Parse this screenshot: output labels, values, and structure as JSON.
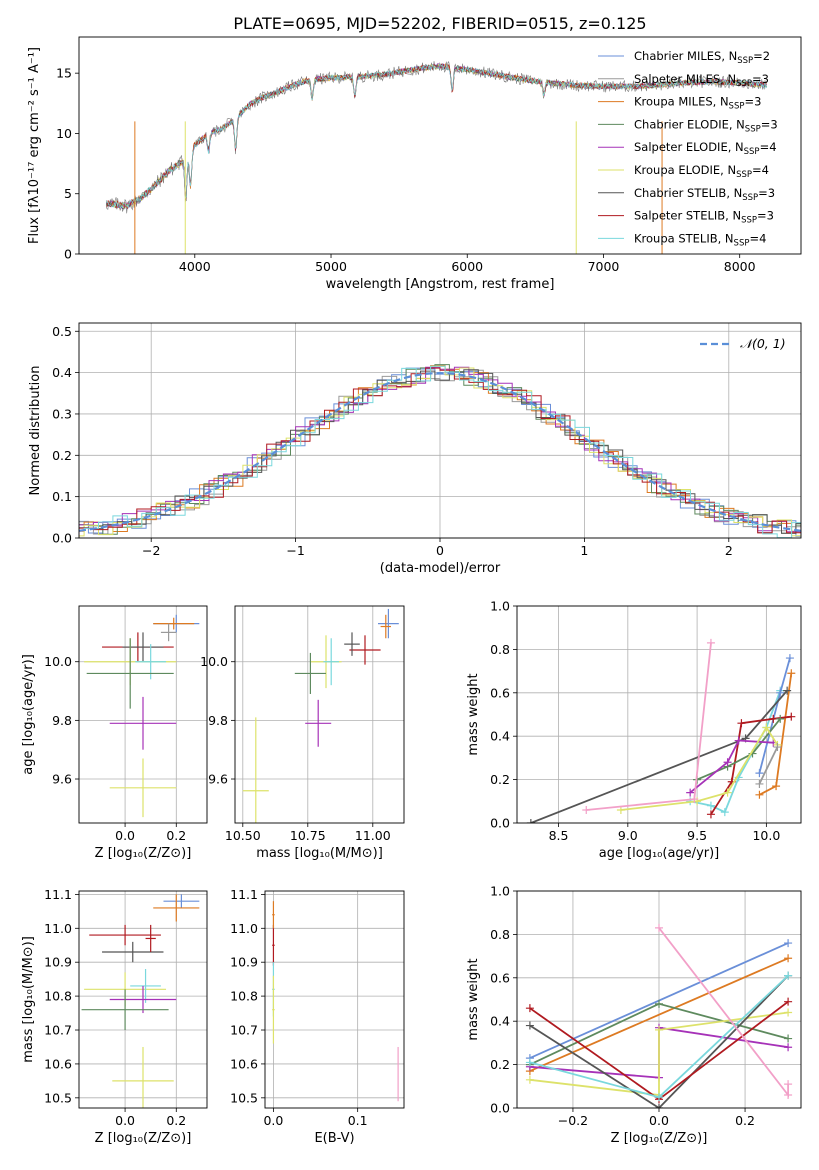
{
  "figure": {
    "title": "PLATE=0695, MJD=52202, FIBERID=0515, z=0.125"
  },
  "colors": {
    "Chabrier MILES": "#6a8fd8",
    "Salpeter MILES": "#9a9a9a",
    "Kroupa MILES": "#dd7a22",
    "Chabrier ELODIE": "#5e8a5e",
    "Salpeter ELODIE": "#a632b8",
    "Kroupa ELODIE": "#dde26a",
    "Chabrier STELIB": "#555555",
    "Salpeter STELIB": "#b01a20",
    "Kroupa STELIB": "#7ad8dd",
    "Normal": "#5a8fd8",
    "Spectrum": "#7a7a7a",
    "Vline": "#f2a0c8"
  },
  "chart_data": [
    {
      "id": "spectrum",
      "type": "line",
      "title": "PLATE=0695, MJD=52202, FIBERID=0515, z=0.125",
      "xlabel": "wavelength [Angstrom, rest frame]",
      "ylabel": "Flux [fλ10⁻¹⁷ erg cm⁻² s⁻¹ A⁻¹]",
      "xlim": [
        3150,
        8450
      ],
      "ylim": [
        0,
        18
      ],
      "xticks": [
        "4000",
        "5000",
        "6000",
        "7000",
        "8000"
      ],
      "yticks": [
        "0",
        "5",
        "10",
        "15"
      ],
      "legend": "top-right",
      "grid": false,
      "envelope_x": [
        3350,
        3500,
        3600,
        3700,
        3800,
        3900,
        4000,
        4100,
        4200,
        4300,
        4400,
        4500,
        4600,
        4700,
        4800,
        4900,
        5000,
        5200,
        5400,
        5600,
        5800,
        6000,
        6200,
        6400,
        6600,
        6800,
        7000,
        7200,
        7400,
        7600,
        7800,
        8000,
        8200
      ],
      "envelope_y": [
        4.2,
        4.0,
        4.6,
        5.6,
        6.8,
        7.6,
        9.0,
        10.0,
        10.4,
        11.2,
        12.4,
        13.0,
        13.4,
        13.9,
        14.3,
        14.5,
        14.6,
        14.7,
        14.9,
        15.3,
        15.6,
        15.3,
        14.9,
        14.5,
        14.2,
        14.0,
        13.9,
        13.9,
        14.0,
        14.2,
        14.3,
        14.2,
        14.0
      ],
      "series": [
        {
          "name": "Chabrier MILES, N_SSP=2",
          "label_main": "Chabrier MILES, N",
          "label_sub": "SSP",
          "label_tail": "=2"
        },
        {
          "name": "Salpeter MILES, N_SSP=3",
          "label_main": "Salpeter MILES, N",
          "label_sub": "SSP",
          "label_tail": "=3"
        },
        {
          "name": "Kroupa MILES, N_SSP=3",
          "label_main": "Kroupa MILES, N",
          "label_sub": "SSP",
          "label_tail": "=3"
        },
        {
          "name": "Chabrier ELODIE, N_SSP=3",
          "label_main": "Chabrier ELODIE, N",
          "label_sub": "SSP",
          "label_tail": "=3"
        },
        {
          "name": "Salpeter ELODIE, N_SSP=4",
          "label_main": "Salpeter ELODIE, N",
          "label_sub": "SSP",
          "label_tail": "=4"
        },
        {
          "name": "Kroupa ELODIE, N_SSP=4",
          "label_main": "Kroupa ELODIE, N",
          "label_sub": "SSP",
          "label_tail": "=4"
        },
        {
          "name": "Chabrier STELIB, N_SSP=3",
          "label_main": "Chabrier STELIB, N",
          "label_sub": "SSP",
          "label_tail": "=3"
        },
        {
          "name": "Salpeter STELIB, N_SSP=3",
          "label_main": "Salpeter STELIB, N",
          "label_sub": "SSP",
          "label_tail": "=3"
        },
        {
          "name": "Kroupa STELIB, N_SSP=4",
          "label_main": "Kroupa STELIB, N",
          "label_sub": "SSP",
          "label_tail": "=4"
        }
      ]
    },
    {
      "id": "residuals",
      "type": "line",
      "xlabel": "(data-model)/error",
      "ylabel": "Normed distribution",
      "xlim": [
        -2.5,
        2.5
      ],
      "ylim": [
        0,
        0.52
      ],
      "xticks": [
        "−2",
        "−1",
        "0",
        "1",
        "2"
      ],
      "yticks": [
        "0.0",
        "0.1",
        "0.2",
        "0.3",
        "0.4",
        "0.5"
      ],
      "legend_label": "𝒩(0, 1)",
      "legend": "top-right",
      "grid": true
    },
    {
      "id": "z_age",
      "type": "scatter",
      "xlabel": "Z [log₁₀(Z/Z⊙)]",
      "ylabel": "age  [log₁₀(age/yr)]",
      "xlim": [
        -0.18,
        0.32
      ],
      "ylim": [
        9.45,
        10.19
      ],
      "xticks": [
        "0.0",
        "0.2"
      ],
      "yticks": [
        "9.6",
        "9.8",
        "10.0"
      ],
      "grid": true,
      "points": [
        {
          "model": "Chabrier MILES",
          "x": 0.2,
          "y": 10.13,
          "xerr": 0.09,
          "yerr": 0.03
        },
        {
          "model": "Kroupa MILES",
          "x": 0.19,
          "y": 10.13,
          "xerr": 0.08,
          "yerr": 0.02
        },
        {
          "model": "Salpeter MILES",
          "x": 0.17,
          "y": 10.1,
          "xerr": 0.03,
          "yerr": 0.03
        },
        {
          "model": "Salpeter STELIB",
          "x": 0.05,
          "y": 10.05,
          "xerr": 0.14,
          "yerr": 0.05
        },
        {
          "model": "Chabrier STELIB",
          "x": 0.07,
          "y": 10.05,
          "xerr": 0.08,
          "yerr": 0.05
        },
        {
          "model": "Kroupa ELODIE",
          "x": 0.02,
          "y": 10.0,
          "xerr": 0.18,
          "yerr": 0.08
        },
        {
          "model": "Kroupa STELIB",
          "x": 0.1,
          "y": 10.0,
          "xerr": 0.06,
          "yerr": 0.06
        },
        {
          "model": "Chabrier ELODIE",
          "x": 0.02,
          "y": 9.96,
          "xerr": 0.17,
          "yerr": 0.12
        },
        {
          "model": "Salpeter ELODIE",
          "x": 0.07,
          "y": 9.79,
          "xerr": 0.13,
          "yerr": 0.09
        },
        {
          "model": "Kroupa ELODIE",
          "x": 0.07,
          "y": 9.57,
          "xerr": 0.13,
          "yerr": 0.1
        }
      ]
    },
    {
      "id": "mass_age",
      "type": "scatter",
      "xlabel": "mass [log₁₀(M/M⊙)]",
      "ylabel": "",
      "xlim": [
        10.47,
        11.12
      ],
      "ylim": [
        9.45,
        10.19
      ],
      "xticks": [
        "10.50",
        "10.75",
        "11.00"
      ],
      "yticks": [
        "9.6",
        "9.8",
        "10.0"
      ],
      "grid": true,
      "points": [
        {
          "model": "Chabrier MILES",
          "x": 11.06,
          "y": 10.13,
          "xerr": 0.04,
          "yerr": 0.05
        },
        {
          "model": "Kroupa MILES",
          "x": 11.05,
          "y": 10.12,
          "xerr": 0.02,
          "yerr": 0.04
        },
        {
          "model": "Salpeter STELIB",
          "x": 10.97,
          "y": 10.04,
          "xerr": 0.06,
          "yerr": 0.05
        },
        {
          "model": "Chabrier STELIB",
          "x": 10.92,
          "y": 10.06,
          "xerr": 0.03,
          "yerr": 0.04
        },
        {
          "model": "Kroupa ELODIE",
          "x": 10.82,
          "y": 10.0,
          "xerr": 0.06,
          "yerr": 0.09
        },
        {
          "model": "Kroupa STELIB",
          "x": 10.84,
          "y": 10.0,
          "xerr": 0.03,
          "yerr": 0.08
        },
        {
          "model": "Chabrier ELODIE",
          "x": 10.76,
          "y": 9.96,
          "xerr": 0.06,
          "yerr": 0.07
        },
        {
          "model": "Salpeter ELODIE",
          "x": 10.79,
          "y": 9.79,
          "xerr": 0.05,
          "yerr": 0.08
        },
        {
          "model": "Kroupa ELODIE",
          "x": 10.55,
          "y": 9.56,
          "xerr": 0.05,
          "yerr": 0.25
        }
      ]
    },
    {
      "id": "age_weight",
      "type": "line",
      "xlabel": "age  [log₁₀(age/yr)]",
      "ylabel": "mass weight",
      "xlim": [
        8.2,
        10.25
      ],
      "ylim": [
        0,
        1.0
      ],
      "xticks": [
        "8.5",
        "9.0",
        "9.5",
        "10.0"
      ],
      "yticks": [
        "0.0",
        "0.2",
        "0.4",
        "0.6",
        "0.8",
        "1.0"
      ],
      "grid": true,
      "series": [
        {
          "model": "Kroupa STELIB",
          "x": [
            9.45,
            9.6,
            9.7,
            9.8,
            10.0,
            10.1
          ],
          "y": [
            0.1,
            0.08,
            0.05,
            0.21,
            0.44,
            0.61
          ]
        },
        {
          "model": "Chabrier MILES",
          "x": [
            9.95,
            10.1,
            10.17
          ],
          "y": [
            0.23,
            0.6,
            0.76
          ]
        },
        {
          "model": "Kroupa MILES",
          "x": [
            9.95,
            10.07,
            10.18
          ],
          "y": [
            0.13,
            0.17,
            0.69
          ]
        },
        {
          "model": "Chabrier STELIB",
          "x": [
            8.3,
            9.85,
            10.15
          ],
          "y": [
            0.0,
            0.39,
            0.61
          ]
        },
        {
          "model": "Salpeter STELIB",
          "x": [
            9.6,
            9.75,
            9.82,
            10.05,
            10.18
          ],
          "y": [
            0.04,
            0.19,
            0.46,
            0.48,
            0.49
          ]
        },
        {
          "model": "Chabrier ELODIE",
          "x": [
            9.5,
            9.72,
            9.9,
            10.1
          ],
          "y": [
            0.2,
            0.26,
            0.32,
            0.48
          ]
        },
        {
          "model": "Salpeter ELODIE",
          "x": [
            9.45,
            9.72,
            9.8,
            10.05
          ],
          "y": [
            0.14,
            0.28,
            0.38,
            0.37
          ]
        },
        {
          "model": "Kroupa ELODIE",
          "x": [
            8.95,
            9.5,
            9.72,
            10.0,
            10.08
          ],
          "y": [
            0.06,
            0.1,
            0.14,
            0.44,
            0.36
          ]
        },
        {
          "model": "Salpeter MILES",
          "x": [
            9.95,
            10.08
          ],
          "y": [
            0.18,
            0.35
          ]
        },
        {
          "model": "Kroupa ELODIE",
          "color_key": "Vline",
          "x": [
            8.7,
            9.48,
            9.6
          ],
          "y": [
            0.06,
            0.11,
            0.83
          ]
        }
      ]
    },
    {
      "id": "z_mass",
      "type": "scatter",
      "xlabel": "Z [log₁₀(Z/Z⊙)]",
      "ylabel": "mass [log₁₀(M/M⊙)]",
      "xlim": [
        -0.18,
        0.32
      ],
      "ylim": [
        10.47,
        11.11
      ],
      "xticks": [
        "0.0",
        "0.2"
      ],
      "yticks": [
        "10.5",
        "10.6",
        "10.7",
        "10.8",
        "10.9",
        "11.0",
        "11.1"
      ],
      "grid": true,
      "points": [
        {
          "model": "Chabrier MILES",
          "x": 0.22,
          "y": 11.08,
          "xerr": 0.07,
          "yerr": 0.02
        },
        {
          "model": "Kroupa MILES",
          "x": 0.2,
          "y": 11.06,
          "xerr": 0.09,
          "yerr": 0.04
        },
        {
          "model": "Salpeter STELIB",
          "x": 0.0,
          "y": 10.98,
          "xerr": 0.14,
          "yerr": 0.03
        },
        {
          "model": "Chabrier STELIB",
          "x": 0.03,
          "y": 10.93,
          "xerr": 0.12,
          "yerr": 0.03
        },
        {
          "model": "Kroupa ELODIE",
          "x": 0.0,
          "y": 10.82,
          "xerr": 0.16,
          "yerr": 0.05
        },
        {
          "model": "Kroupa STELIB",
          "x": 0.08,
          "y": 10.83,
          "xerr": 0.06,
          "yerr": 0.05
        },
        {
          "model": "Salpeter ELODIE",
          "x": 0.07,
          "y": 10.79,
          "xerr": 0.13,
          "yerr": 0.04
        },
        {
          "model": "Chabrier ELODIE",
          "x": 0.0,
          "y": 10.76,
          "xerr": 0.17,
          "yerr": 0.06
        },
        {
          "model": "Salpeter STELIB",
          "x": 0.1,
          "y": 10.97,
          "xerr": 0.02,
          "yerr": 0.04
        },
        {
          "model": "Kroupa ELODIE",
          "x": 0.07,
          "y": 10.55,
          "xerr": 0.12,
          "yerr": 0.1
        }
      ]
    },
    {
      "id": "ebv_mass",
      "type": "scatter",
      "xlabel": "E(B-V)",
      "ylabel": "",
      "xlim": [
        -0.01,
        0.155
      ],
      "ylim": [
        10.47,
        11.11
      ],
      "xticks": [
        "0.0",
        "0.1"
      ],
      "yticks": [
        "10.5",
        "10.6",
        "10.7",
        "10.8",
        "10.9",
        "11.0",
        "11.1"
      ],
      "grid": true,
      "points": [
        {
          "model": "Salpeter STELIB",
          "x": 0.0,
          "y": 10.95,
          "xerr": 0.0015,
          "yerr": 0.06
        },
        {
          "model": "Kroupa MILES",
          "x": 0.0,
          "y": 11.04,
          "xerr": 0.0015,
          "yerr": 0.04
        },
        {
          "model": "Kroupa STELIB",
          "x": 0.0,
          "y": 10.82,
          "xerr": 0.0015,
          "yerr": 0.08
        },
        {
          "model": "Kroupa ELODIE",
          "x": 0.0,
          "y": 10.76,
          "xerr": 0.0015,
          "yerr": 0.1
        },
        {
          "model": "Kroupa ELODIE",
          "color_key": "Vline",
          "x": 0.148,
          "y": 10.57,
          "xerr": 0.0,
          "yerr": 0.08
        }
      ]
    },
    {
      "id": "z_weight",
      "type": "line",
      "xlabel": "Z [log₁₀(Z/Z⊙)]",
      "ylabel": "mass weight",
      "xlim": [
        -0.33,
        0.33
      ],
      "ylim": [
        0,
        1.0
      ],
      "xticks": [
        "−0.2",
        "0.0",
        "0.2"
      ],
      "yticks": [
        "0.0",
        "0.2",
        "0.4",
        "0.6",
        "0.8",
        "1.0"
      ],
      "grid": true,
      "series": [
        {
          "model": "Chabrier MILES",
          "x": [
            -0.3,
            0.3
          ],
          "y": [
            0.23,
            0.76
          ]
        },
        {
          "model": "Kroupa MILES",
          "x": [
            -0.3,
            0.3
          ],
          "y": [
            0.17,
            0.69
          ]
        },
        {
          "model": "Chabrier ELODIE",
          "x": [
            -0.3,
            0.0,
            0.3
          ],
          "y": [
            0.2,
            0.48,
            0.32
          ]
        },
        {
          "model": "Salpeter ELODIE",
          "x": [
            -0.3,
            0.0,
            0.0,
            0.3
          ],
          "y": [
            0.19,
            0.14,
            0.37,
            0.28
          ]
        },
        {
          "model": "Kroupa ELODIE",
          "x": [
            -0.3,
            0.0,
            0.0,
            0.3
          ],
          "y": [
            0.13,
            0.06,
            0.36,
            0.44
          ]
        },
        {
          "model": "Chabrier STELIB",
          "x": [
            -0.3,
            0.0,
            0.3
          ],
          "y": [
            0.38,
            0.0,
            0.61
          ]
        },
        {
          "model": "Salpeter STELIB",
          "x": [
            -0.3,
            0.0,
            0.3
          ],
          "y": [
            0.46,
            0.04,
            0.49
          ]
        },
        {
          "model": "Kroupa STELIB",
          "x": [
            -0.3,
            0.0,
            0.3
          ],
          "y": [
            0.21,
            0.05,
            0.61
          ]
        },
        {
          "model": "Kroupa ELODIE",
          "color_key": "Vline",
          "x": [
            0.0,
            0.3,
            0.3
          ],
          "y": [
            0.83,
            0.06,
            0.11
          ]
        }
      ]
    }
  ]
}
